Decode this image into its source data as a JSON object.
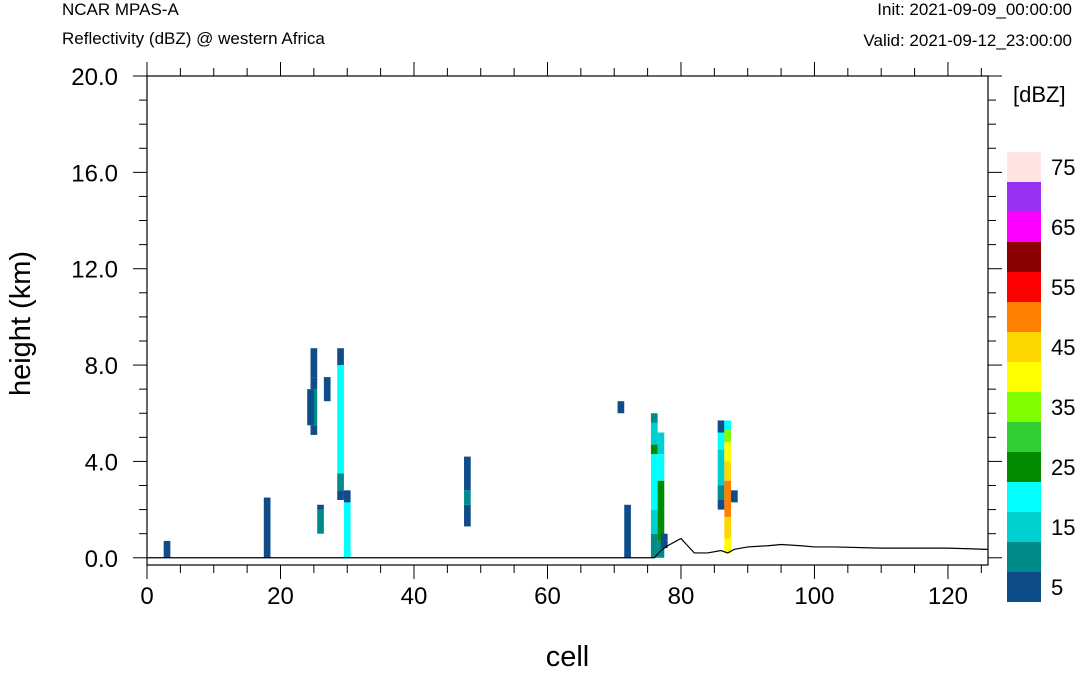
{
  "header": {
    "model": "NCAR MPAS-A",
    "subtitle": "Reflectivity (dBZ) @ western Africa",
    "init": "Init: 2021-09-09_00:00:00",
    "valid": "Valid: 2021-09-12_23:00:00"
  },
  "chart_data": {
    "type": "heatmap",
    "xlabel": "cell",
    "ylabel": "height (km)",
    "xlim": [
      0,
      126
    ],
    "ylim": [
      -0.3,
      20.0
    ],
    "xticks": [
      "0",
      "20",
      "40",
      "60",
      "80",
      "100",
      "120"
    ],
    "yticks": [
      "0.0",
      "4.0",
      "8.0",
      "12.0",
      "16.0",
      "20.0"
    ],
    "colorbar": {
      "title": "[dBZ]",
      "levels": [
        5,
        10,
        15,
        20,
        25,
        30,
        35,
        40,
        45,
        50,
        55,
        60,
        65,
        70,
        75
      ],
      "labels": [
        "5",
        "15",
        "25",
        "35",
        "45",
        "55",
        "65",
        "75"
      ],
      "colors": [
        "#0f4c8a",
        "#008b8b",
        "#00cfcf",
        "#00ffff",
        "#008b00",
        "#32cd32",
        "#7fff00",
        "#ffff00",
        "#ffd700",
        "#ff8000",
        "#ff0000",
        "#8b0000",
        "#ff00ff",
        "#9932f0",
        "#ffe4e1"
      ]
    },
    "columns": [
      {
        "x": 3,
        "cells": [
          [
            0.0,
            0.7,
            5
          ]
        ]
      },
      {
        "x": 18,
        "cells": [
          [
            0.0,
            2.5,
            5
          ]
        ]
      },
      {
        "x": 25,
        "cells": [
          [
            5.1,
            5.5,
            5
          ],
          [
            5.5,
            7.0,
            10
          ],
          [
            7.0,
            7.5,
            5
          ],
          [
            7.5,
            8.7,
            5
          ]
        ]
      },
      {
        "x": 24.5,
        "cells": [
          [
            5.5,
            7.0,
            5
          ]
        ]
      },
      {
        "x": 26,
        "cells": [
          [
            1.0,
            2.0,
            10
          ],
          [
            2.0,
            2.2,
            5
          ]
        ]
      },
      {
        "x": 27,
        "cells": [
          [
            6.5,
            7.5,
            5
          ]
        ]
      },
      {
        "x": 29,
        "cells": [
          [
            2.4,
            2.8,
            5
          ],
          [
            2.8,
            3.5,
            10
          ],
          [
            3.5,
            8.0,
            20
          ],
          [
            8.0,
            8.7,
            5
          ]
        ]
      },
      {
        "x": 30,
        "cells": [
          [
            0.0,
            2.3,
            20
          ],
          [
            2.3,
            2.8,
            5
          ]
        ]
      },
      {
        "x": 48,
        "cells": [
          [
            1.3,
            2.2,
            5
          ],
          [
            2.2,
            2.8,
            10
          ],
          [
            2.8,
            4.2,
            5
          ]
        ]
      },
      {
        "x": 71,
        "cells": [
          [
            6.0,
            6.5,
            5
          ]
        ]
      },
      {
        "x": 72,
        "cells": [
          [
            0.0,
            2.2,
            5
          ]
        ]
      },
      {
        "x": 76,
        "cells": [
          [
            0.0,
            1.0,
            10
          ],
          [
            1.0,
            2.0,
            15
          ],
          [
            2.0,
            4.3,
            20
          ],
          [
            4.3,
            4.7,
            25
          ],
          [
            4.7,
            5.6,
            15
          ],
          [
            5.6,
            6.0,
            10
          ]
        ]
      },
      {
        "x": 77,
        "cells": [
          [
            0.0,
            0.7,
            10
          ],
          [
            0.7,
            3.2,
            25
          ],
          [
            3.2,
            4.3,
            20
          ],
          [
            4.3,
            5.2,
            15
          ]
        ]
      },
      {
        "x": 77.5,
        "cells": [
          [
            0.4,
            1.0,
            5
          ]
        ]
      },
      {
        "x": 86,
        "cells": [
          [
            2.0,
            2.4,
            5
          ],
          [
            2.4,
            3.0,
            10
          ],
          [
            3.0,
            4.5,
            15
          ],
          [
            4.5,
            5.2,
            20
          ],
          [
            5.2,
            5.7,
            5
          ]
        ]
      },
      {
        "x": 87,
        "cells": [
          [
            0.2,
            0.8,
            40
          ],
          [
            0.8,
            1.7,
            45
          ],
          [
            1.7,
            3.2,
            50
          ],
          [
            3.2,
            4.0,
            45
          ],
          [
            4.0,
            4.8,
            40
          ],
          [
            4.8,
            5.3,
            35
          ],
          [
            5.3,
            5.7,
            20
          ]
        ]
      },
      {
        "x": 88,
        "cells": [
          [
            2.3,
            2.8,
            5
          ]
        ]
      }
    ],
    "terrain": [
      [
        0,
        0
      ],
      [
        76,
        0
      ],
      [
        77,
        0.3
      ],
      [
        78,
        0.5
      ],
      [
        80,
        0.8
      ],
      [
        81,
        0.5
      ],
      [
        82,
        0.2
      ],
      [
        84,
        0.2
      ],
      [
        86,
        0.3
      ],
      [
        87,
        0.2
      ],
      [
        88,
        0.35
      ],
      [
        90,
        0.45
      ],
      [
        93,
        0.5
      ],
      [
        95,
        0.55
      ],
      [
        98,
        0.5
      ],
      [
        100,
        0.45
      ],
      [
        103,
        0.45
      ],
      [
        110,
        0.4
      ],
      [
        115,
        0.4
      ],
      [
        120,
        0.4
      ],
      [
        126,
        0.35
      ]
    ]
  }
}
